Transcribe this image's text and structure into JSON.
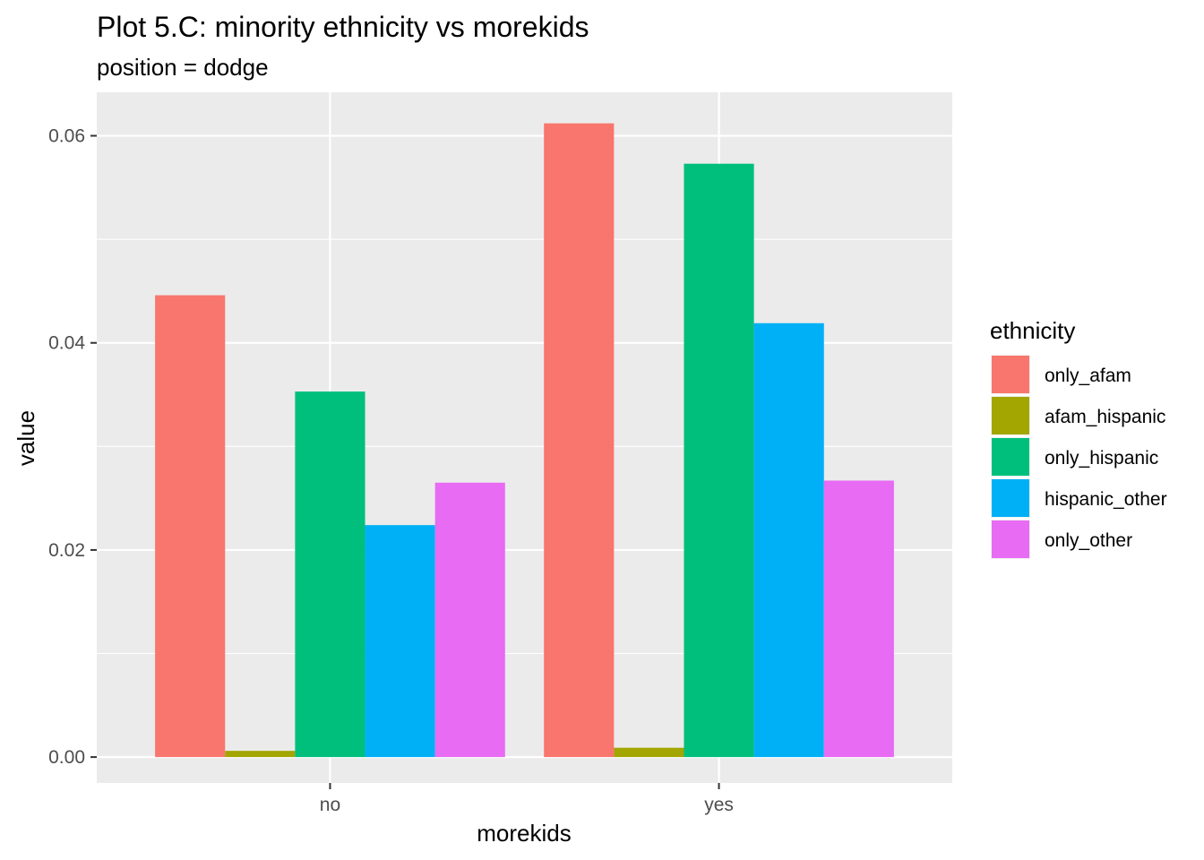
{
  "chart_data": {
    "type": "bar",
    "position": "dodge",
    "title": "Plot 5.C: minority ethnicity vs morekids",
    "subtitle": "position = dodge",
    "xlabel": "morekids",
    "ylabel": "value",
    "categories": [
      "no",
      "yes"
    ],
    "ylim": [
      -0.0025,
      0.0642
    ],
    "yticks": [
      0.0,
      0.02,
      0.04,
      0.06
    ],
    "ytick_labels": [
      "0.00",
      "0.02",
      "0.04",
      "0.06"
    ],
    "grid": true,
    "legend": {
      "title": "ethnicity",
      "placement": "right"
    },
    "series": [
      {
        "name": "only_afam",
        "color": "#F8766D",
        "values": [
          0.0446,
          0.0612
        ]
      },
      {
        "name": "afam_hispanic",
        "color": "#A3A500",
        "values": [
          0.0006,
          0.0009
        ]
      },
      {
        "name": "only_hispanic",
        "color": "#00BF7D",
        "values": [
          0.0353,
          0.0573
        ]
      },
      {
        "name": "hispanic_other",
        "color": "#00B0F6",
        "values": [
          0.0224,
          0.0419
        ]
      },
      {
        "name": "only_other",
        "color": "#E76BF3",
        "values": [
          0.0265,
          0.0267
        ]
      }
    ]
  },
  "colors": {
    "panel_background": "#EBEBEB",
    "grid_major": "#FFFFFF",
    "tick_text": "#4D4D4D"
  }
}
